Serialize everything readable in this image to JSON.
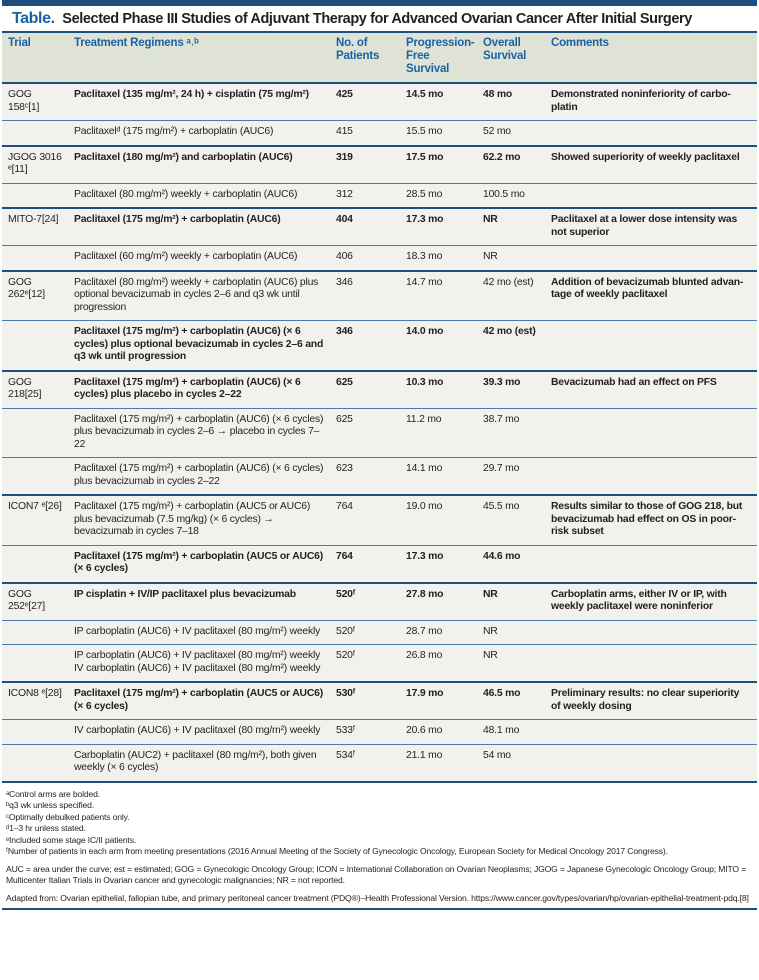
{
  "title": {
    "label": "Table.",
    "text": "Selected Phase III Studies of Adjuvant Therapy for Advanced Ovarian Cancer After Initial Surgery"
  },
  "headers": [
    "Trial",
    "Treatment Regimens ᵃ˒ᵇ",
    "No. of Patients",
    "Progression-Free Survival",
    "Overall Survival",
    "Comments"
  ],
  "rows": [
    {
      "group": true,
      "bold": true,
      "trial": "GOG 158ᶜ[1]",
      "regimen": "Paclitaxel (135 mg/m², 24 h) + cisplatin (75 mg/m²)",
      "n": "425",
      "pfs": "14.5 mo",
      "os": "48 mo",
      "comment": "Demonstrated noninferiority of carbo-platin"
    },
    {
      "group": false,
      "bold": false,
      "trial": "",
      "regimen": "Paclitaxelᵈ (175 mg/m²) + carboplatin (AUC6)",
      "n": "415",
      "pfs": "15.5 mo",
      "os": "52 mo",
      "comment": ""
    },
    {
      "group": true,
      "bold": true,
      "trial": "JGOG 3016 ᵉ[11]",
      "regimen": "Paclitaxel (180 mg/m²) and carboplatin (AUC6)",
      "n": "319",
      "pfs": "17.5 mo",
      "os": "62.2 mo",
      "comment": "Showed superiority of weekly paclitaxel"
    },
    {
      "group": false,
      "bold": false,
      "trial": "",
      "regimen": "Paclitaxel (80 mg/m²) weekly + carboplatin (AUC6)",
      "n": "312",
      "pfs": "28.5 mo",
      "os": "100.5 mo",
      "comment": ""
    },
    {
      "group": true,
      "bold": true,
      "trial": "MITO-7[24]",
      "regimen": "Paclitaxel (175 mg/m²) + carboplatin (AUC6)",
      "n": "404",
      "pfs": "17.3 mo",
      "os": "NR",
      "comment": "Paclitaxel at a lower dose intensity was not superior"
    },
    {
      "group": false,
      "bold": false,
      "trial": "",
      "regimen": "Paclitaxel (60 mg/m²) weekly + carboplatin (AUC6)",
      "n": "406",
      "pfs": "18.3 mo",
      "os": "NR",
      "comment": ""
    },
    {
      "group": true,
      "bold": false,
      "trial": "GOG 262ᵉ[12]",
      "regimen": "Paclitaxel (80 mg/m²) weekly + carboplatin (AUC6) plus optional bevacizumab in cycles 2–6 and q3 wk until progression",
      "n": "346",
      "pfs": "14.7 mo",
      "os": "42 mo (est)",
      "comment": "Addition of bevacizumab blunted advan-tage of weekly paclitaxel"
    },
    {
      "group": false,
      "bold": true,
      "trial": "",
      "regimen": "Paclitaxel (175 mg/m²) + carboplatin (AUC6) (× 6 cycles) plus optional bevacizumab in cycles 2–6 and q3 wk until progression",
      "n": "346",
      "pfs": "14.0 mo",
      "os": "42 mo (est)",
      "comment": ""
    },
    {
      "group": true,
      "bold": true,
      "trial": "GOG 218[25]",
      "regimen": "Paclitaxel (175 mg/m²) + carboplatin (AUC6) (× 6 cycles) plus placebo in cycles 2–22",
      "n": "625",
      "pfs": "10.3 mo",
      "os": "39.3 mo",
      "comment": "Bevacizumab had an effect on PFS"
    },
    {
      "group": false,
      "bold": false,
      "trial": "",
      "regimen": "Paclitaxel (175 mg/m²) + carboplatin (AUC6) (× 6 cycles) plus bevacizumab in cycles 2–6 → placebo in cycles 7–22",
      "n": "625",
      "pfs": "11.2 mo",
      "os": "38.7 mo",
      "comment": ""
    },
    {
      "group": false,
      "bold": false,
      "trial": "",
      "regimen": "Paclitaxel (175 mg/m²) + carboplatin (AUC6) (× 6 cycles) plus bevacizumab in cycles 2–22",
      "n": "623",
      "pfs": "14.1 mo",
      "os": "29.7 mo",
      "comment": ""
    },
    {
      "group": true,
      "bold": false,
      "trial": "ICON7 ᵉ[26]",
      "regimen": "Paclitaxel (175 mg/m²) + carboplatin (AUC5 or AUC6) plus bevacizumab (7.5 mg/kg) (× 6 cycles) → bevacizumab in cycles 7–18",
      "n": "764",
      "pfs": "19.0 mo",
      "os": "45.5 mo",
      "comment": "Results similar to those of GOG 218, but bevacizumab had effect on OS in poor-risk subset"
    },
    {
      "group": false,
      "bold": true,
      "trial": "",
      "regimen": "Paclitaxel (175 mg/m²) + carboplatin (AUC5 or AUC6) (× 6 cycles)",
      "n": "764",
      "pfs": "17.3 mo",
      "os": "44.6 mo",
      "comment": ""
    },
    {
      "group": true,
      "bold": true,
      "trial": "GOG 252ᵉ[27]",
      "regimen": "IP cisplatin + IV/IP paclitaxel plus bevacizumab",
      "n": "520ᶠ",
      "pfs": "27.8 mo",
      "os": "NR",
      "comment": "Carboplatin arms, either IV or IP, with weekly paclitaxel were noninferior"
    },
    {
      "group": false,
      "bold": false,
      "trial": "",
      "regimen": "IP carboplatin (AUC6) + IV paclitaxel (80 mg/m²) weekly",
      "n": "520ᶠ",
      "pfs": "28.7 mo",
      "os": "NR",
      "comment": ""
    },
    {
      "group": false,
      "bold": false,
      "trial": "",
      "regimen": "IP carboplatin (AUC6) + IV paclitaxel (80 mg/m²) weekly IV carboplatin (AUC6) + IV paclitaxel (80 mg/m²) weekly",
      "n": "520ᶠ",
      "pfs": "26.8 mo",
      "os": "NR",
      "comment": ""
    },
    {
      "group": true,
      "bold": true,
      "trial": "ICON8 ᵉ[28]",
      "regimen": "Paclitaxel (175 mg/m²) + carboplatin (AUC5 or AUC6) (× 6 cycles)",
      "n": "530ᶠ",
      "pfs": "17.9 mo",
      "os": "46.5 mo",
      "comment": "Preliminary results: no clear superiority of weekly dosing"
    },
    {
      "group": false,
      "bold": false,
      "trial": "",
      "regimen": "IV carboplatin (AUC6) + IV paclitaxel (80 mg/m²) weekly",
      "n": "533ᶠ",
      "pfs": "20.6 mo",
      "os": "48.1 mo",
      "comment": ""
    },
    {
      "group": false,
      "bold": false,
      "trial": "",
      "regimen": "Carboplatin (AUC2) + paclitaxel (80 mg/m²), both given weekly (× 6 cycles)",
      "n": "534ᶠ",
      "pfs": "21.1 mo",
      "os": "54 mo",
      "comment": ""
    }
  ],
  "footnotes": [
    "ᵃControl arms are bolded.",
    "ᵇq3 wk unless specified.",
    "ᶜOptimally debulked patients only.",
    "ᵈ1–3 hr unless stated.",
    "ᵉIncluded some stage IC/II patients.",
    "ᶠNumber of patients in each arm from meeting presentations (2016 Annual Meeting of the Society of Gynecologic Oncology, European Society for Medical Oncology 2017 Congress)."
  ],
  "abbreviations": "AUC = area under the curve; est = estimated; GOG = Gynecologic Oncology Group; ICON = International Collaboration on Ovarian Neoplasms; JGOG = Japanese Gynecologic Oncology Group; MITO = Multicenter Italian Trials in Ovarian cancer and gynecologic malignancies; NR = not reported.",
  "source": "Adapted from: Ovarian epithelial, fallopian tube, and primary peritoneal cancer treatment (PDQ®)–Health Professional Version. https://www.cancer.gov/types/ovarian/hp/ovarian-epithelial-treatment-pdq.[8]"
}
